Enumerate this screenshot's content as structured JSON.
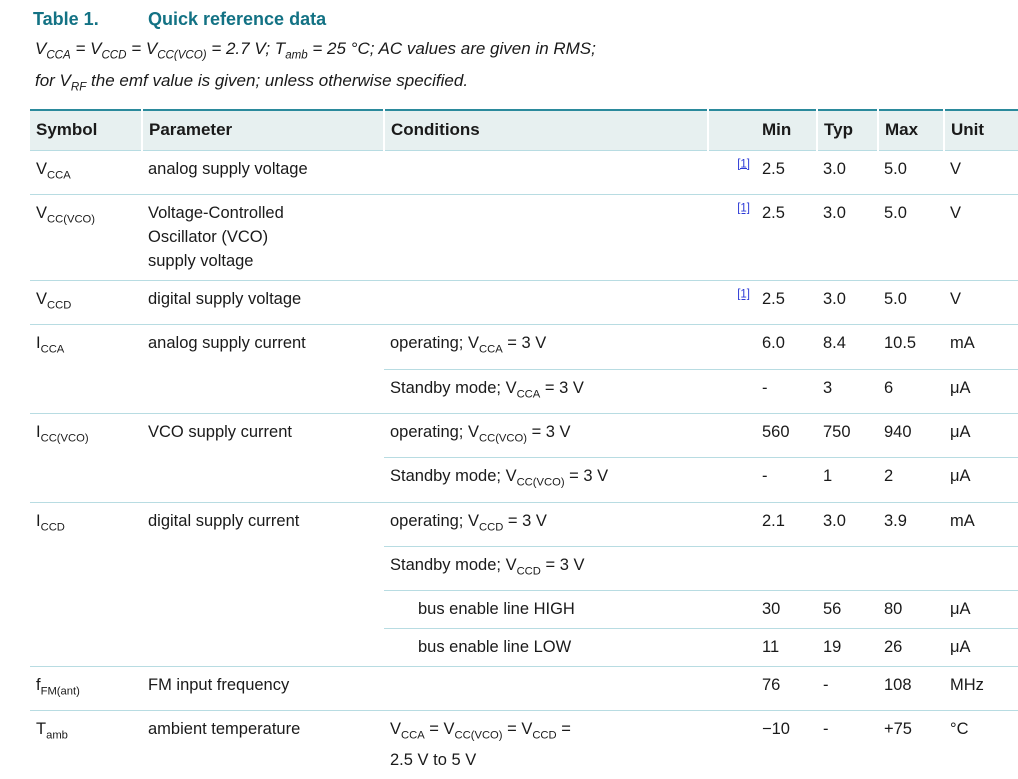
{
  "colors": {
    "accent": "#137284",
    "rule": "#b8dce2",
    "headerbg": "#e7f0f0",
    "link": "#2b38d6",
    "text": "#1a1a1a"
  },
  "caption": {
    "label": "Table 1.",
    "title": "Quick reference data"
  },
  "note": {
    "line1": "V~CCA~ = V~CCD~ = V~CC(VCO)~ = 2.7 V; T~amb~ = 25 °C; AC values are given in RMS;",
    "line2": "for V~RF~ the emf value is given; unless otherwise specified."
  },
  "table": {
    "headers": {
      "symbol": "Symbol",
      "parameter": "Parameter",
      "conditions": "Conditions",
      "min": "Min",
      "typ": "Typ",
      "max": "Max",
      "unit": "Unit"
    },
    "rows": [
      {
        "symbol": "V~CCA~",
        "parameter": "analog supply voltage",
        "conditions": "",
        "ref": "[1]",
        "min": "2.5",
        "typ": "3.0",
        "max": "5.0",
        "unit": "V"
      },
      {
        "symbol": "V~CC(VCO)~",
        "parameter": "Voltage-Controlled\nOscillator (VCO)\nsupply voltage",
        "conditions": "",
        "ref": "[1]",
        "min": "2.5",
        "typ": "3.0",
        "max": "5.0",
        "unit": "V"
      },
      {
        "symbol": "V~CCD~",
        "parameter": "digital supply voltage",
        "conditions": "",
        "ref": "[1]",
        "min": "2.5",
        "typ": "3.0",
        "max": "5.0",
        "unit": "V"
      },
      {
        "symbol": "I~CCA~",
        "parameter": "analog supply current",
        "conditions": "operating; V~CCA~ = 3 V",
        "ref": "",
        "min": "6.0",
        "typ": "8.4",
        "max": "10.5",
        "unit": "mA"
      },
      {
        "symbol": "",
        "parameter": "",
        "conditions": "Standby mode; V~CCA~ = 3 V",
        "ref": "",
        "min": "-",
        "typ": "3",
        "max": "6",
        "unit": "μA"
      },
      {
        "symbol": "I~CC(VCO)~",
        "parameter": "VCO supply current",
        "conditions": "operating; V~CC(VCO)~ = 3 V",
        "ref": "",
        "min": "560",
        "typ": "750",
        "max": "940",
        "unit": "μA"
      },
      {
        "symbol": "",
        "parameter": "",
        "conditions": "Standby mode; V~CC(VCO)~ = 3 V",
        "ref": "",
        "min": "-",
        "typ": "1",
        "max": "2",
        "unit": "μA"
      },
      {
        "symbol": "I~CCD~",
        "parameter": "digital supply current",
        "conditions": "operating; V~CCD~ = 3 V",
        "ref": "",
        "min": "2.1",
        "typ": "3.0",
        "max": "3.9",
        "unit": "mA"
      },
      {
        "symbol": "",
        "parameter": "",
        "conditions": "Standby mode; V~CCD~ = 3 V",
        "ref": "",
        "min": "",
        "typ": "",
        "max": "",
        "unit": ""
      },
      {
        "symbol": "",
        "parameter": "",
        "conditions": "bus enable line HIGH",
        "ref": "",
        "min": "30",
        "typ": "56",
        "max": "80",
        "unit": "μA"
      },
      {
        "symbol": "",
        "parameter": "",
        "conditions": "bus enable line LOW",
        "ref": "",
        "min": "11",
        "typ": "19",
        "max": "26",
        "unit": "μA"
      },
      {
        "symbol": "f~FM(ant)~",
        "parameter": "FM input frequency",
        "conditions": "",
        "ref": "",
        "min": "76",
        "typ": "-",
        "max": "108",
        "unit": "MHz"
      },
      {
        "symbol": "T~amb~",
        "parameter": "ambient temperature",
        "conditions": "V~CCA~ = V~CC(VCO)~ = V~CCD~ =\n2.5 V to 5 V",
        "ref": "",
        "min": "−10",
        "typ": "-",
        "max": "+75",
        "unit": "°C"
      }
    ]
  }
}
